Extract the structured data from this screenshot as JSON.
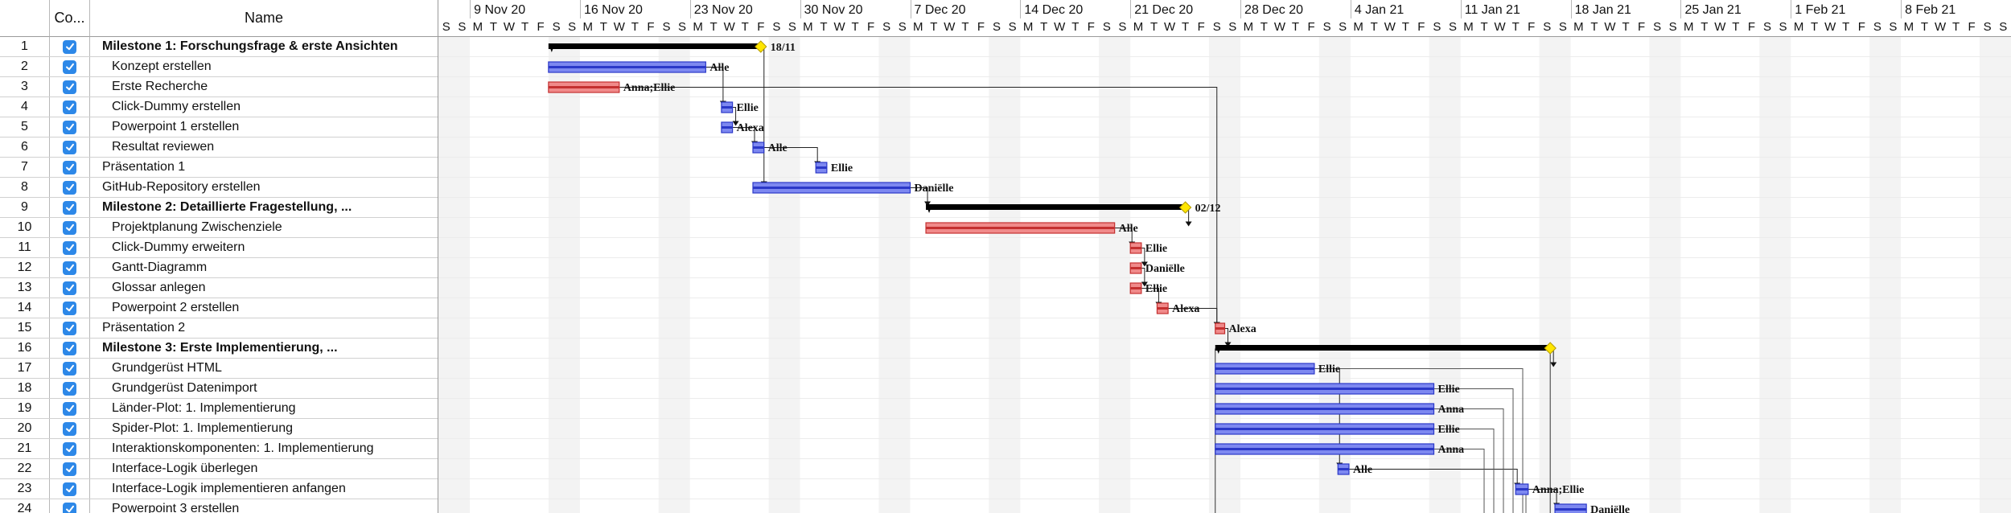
{
  "table": {
    "headers": {
      "number": "",
      "completed": "Co...",
      "name": "Name"
    },
    "rows": [
      {
        "num": "1",
        "name": "Milestone 1: Forschungsfrage & erste Ansichten",
        "bold": true,
        "indent": false
      },
      {
        "num": "2",
        "name": "Konzept erstellen",
        "bold": false,
        "indent": true
      },
      {
        "num": "3",
        "name": "Erste Recherche",
        "bold": false,
        "indent": true
      },
      {
        "num": "4",
        "name": "Click-Dummy erstellen",
        "bold": false,
        "indent": true
      },
      {
        "num": "5",
        "name": "Powerpoint 1 erstellen",
        "bold": false,
        "indent": true
      },
      {
        "num": "6",
        "name": "Resultat reviewen",
        "bold": false,
        "indent": true
      },
      {
        "num": "7",
        "name": "Präsentation 1",
        "bold": false,
        "indent": false
      },
      {
        "num": "8",
        "name": "GitHub-Repository erstellen",
        "bold": false,
        "indent": false
      },
      {
        "num": "9",
        "name": "Milestone 2: Detaillierte Fragestellung, ...",
        "bold": true,
        "indent": false
      },
      {
        "num": "10",
        "name": "Projektplanung Zwischenziele",
        "bold": false,
        "indent": true
      },
      {
        "num": "11",
        "name": "Click-Dummy erweitern",
        "bold": false,
        "indent": true
      },
      {
        "num": "12",
        "name": "Gantt-Diagramm",
        "bold": false,
        "indent": true
      },
      {
        "num": "13",
        "name": "Glossar anlegen",
        "bold": false,
        "indent": true
      },
      {
        "num": "14",
        "name": "Powerpoint 2 erstellen",
        "bold": false,
        "indent": true
      },
      {
        "num": "15",
        "name": "Präsentation 2",
        "bold": false,
        "indent": false
      },
      {
        "num": "16",
        "name": "Milestone 3: Erste Implementierung, ...",
        "bold": true,
        "indent": false
      },
      {
        "num": "17",
        "name": "Grundgerüst HTML",
        "bold": false,
        "indent": true
      },
      {
        "num": "18",
        "name": "Grundgerüst Datenimport",
        "bold": false,
        "indent": true
      },
      {
        "num": "19",
        "name": "Länder-Plot: 1. Implementierung",
        "bold": false,
        "indent": true
      },
      {
        "num": "20",
        "name": "Spider-Plot: 1. Implementierung",
        "bold": false,
        "indent": true
      },
      {
        "num": "21",
        "name": "Interaktionskomponenten: 1. Implementierung",
        "bold": false,
        "indent": true
      },
      {
        "num": "22",
        "name": "Interface-Logik überlegen",
        "bold": false,
        "indent": true
      },
      {
        "num": "23",
        "name": "Interface-Logik implementieren anfangen",
        "bold": false,
        "indent": true
      },
      {
        "num": "24",
        "name": "Powerpoint 3 erstellen",
        "bold": false,
        "indent": true
      }
    ]
  },
  "timeline": {
    "weeks": [
      "9 Nov 20",
      "16 Nov 20",
      "23 Nov 20",
      "30 Nov 20",
      "7 Dec 20",
      "14 Dec 20",
      "21 Dec 20",
      "28 Dec 20",
      "4 Jan 21",
      "11 Jan 21",
      "18 Jan 21",
      "25 Jan 21",
      "1 Feb 21",
      "8 Feb 21"
    ],
    "day_letters": [
      "S",
      "S",
      "M",
      "T",
      "W",
      "T",
      "F",
      "S"
    ],
    "days_per_week": [
      "S",
      "S",
      "M",
      "T",
      "W",
      "T",
      "F"
    ]
  },
  "colors": {
    "blue_bar": "#7d88f0",
    "red_bar": "#f08a8a",
    "milestone": "#000000",
    "diamond": "#ffe600",
    "weekend_shade": "#f3f3f3",
    "checkbox": "#2d88e8"
  },
  "tasks": [
    {
      "row": 1,
      "type": "summary",
      "start": 7.0,
      "end": 20.5,
      "diamond": 20.5,
      "label": "18/11"
    },
    {
      "row": 2,
      "type": "blue",
      "start": 7.0,
      "end": 17.0,
      "label": "Alle"
    },
    {
      "row": 3,
      "type": "red",
      "start": 7.0,
      "end": 11.5,
      "label": "Anna;Ellie"
    },
    {
      "row": 4,
      "type": "blue",
      "start": 18.0,
      "end": 18.7,
      "label": "Ellie"
    },
    {
      "row": 5,
      "type": "blue",
      "start": 18.0,
      "end": 18.7,
      "label": "Alexa"
    },
    {
      "row": 6,
      "type": "blue",
      "start": 20.0,
      "end": 20.7,
      "label": "Alle"
    },
    {
      "row": 7,
      "type": "blue",
      "start": 24.0,
      "end": 24.7,
      "label": "Ellie"
    },
    {
      "row": 8,
      "type": "blue",
      "start": 20.0,
      "end": 30.0,
      "label": "Daniëlle"
    },
    {
      "row": 9,
      "type": "summary",
      "start": 31.0,
      "end": 47.5,
      "diamond": 47.5,
      "label": "02/12"
    },
    {
      "row": 10,
      "type": "red",
      "start": 31.0,
      "end": 43.0,
      "label": "Alle"
    },
    {
      "row": 11,
      "type": "red",
      "start": 44.0,
      "end": 44.7,
      "label": "Ellie"
    },
    {
      "row": 12,
      "type": "red",
      "start": 44.0,
      "end": 44.7,
      "label": "Daniëlle"
    },
    {
      "row": 13,
      "type": "red",
      "start": 44.0,
      "end": 44.7,
      "label": "Ellie"
    },
    {
      "row": 14,
      "type": "red",
      "start": 45.7,
      "end": 46.4,
      "label": "Alexa"
    },
    {
      "row": 15,
      "type": "red",
      "start": 49.4,
      "end": 50.0,
      "label": "Alexa"
    },
    {
      "row": 16,
      "type": "summary",
      "start": 49.4,
      "end": 70.7,
      "diamond": 70.7,
      "label": ""
    },
    {
      "row": 17,
      "type": "blue",
      "start": 49.4,
      "end": 55.7,
      "label": "Ellie"
    },
    {
      "row": 18,
      "type": "blue",
      "start": 49.4,
      "end": 63.3,
      "label": "Ellie"
    },
    {
      "row": 19,
      "type": "blue",
      "start": 49.4,
      "end": 63.3,
      "label": "Anna"
    },
    {
      "row": 20,
      "type": "blue",
      "start": 49.4,
      "end": 63.3,
      "label": "Ellie"
    },
    {
      "row": 21,
      "type": "blue",
      "start": 49.4,
      "end": 63.3,
      "label": "Anna"
    },
    {
      "row": 22,
      "type": "blue",
      "start": 57.2,
      "end": 57.9,
      "label": "Alle"
    },
    {
      "row": 23,
      "type": "blue",
      "start": 68.5,
      "end": 69.3,
      "label": "Anna;Ellie"
    },
    {
      "row": 24,
      "type": "blue",
      "start": 71.0,
      "end": 73.0,
      "label": "Daniëlle"
    }
  ]
}
